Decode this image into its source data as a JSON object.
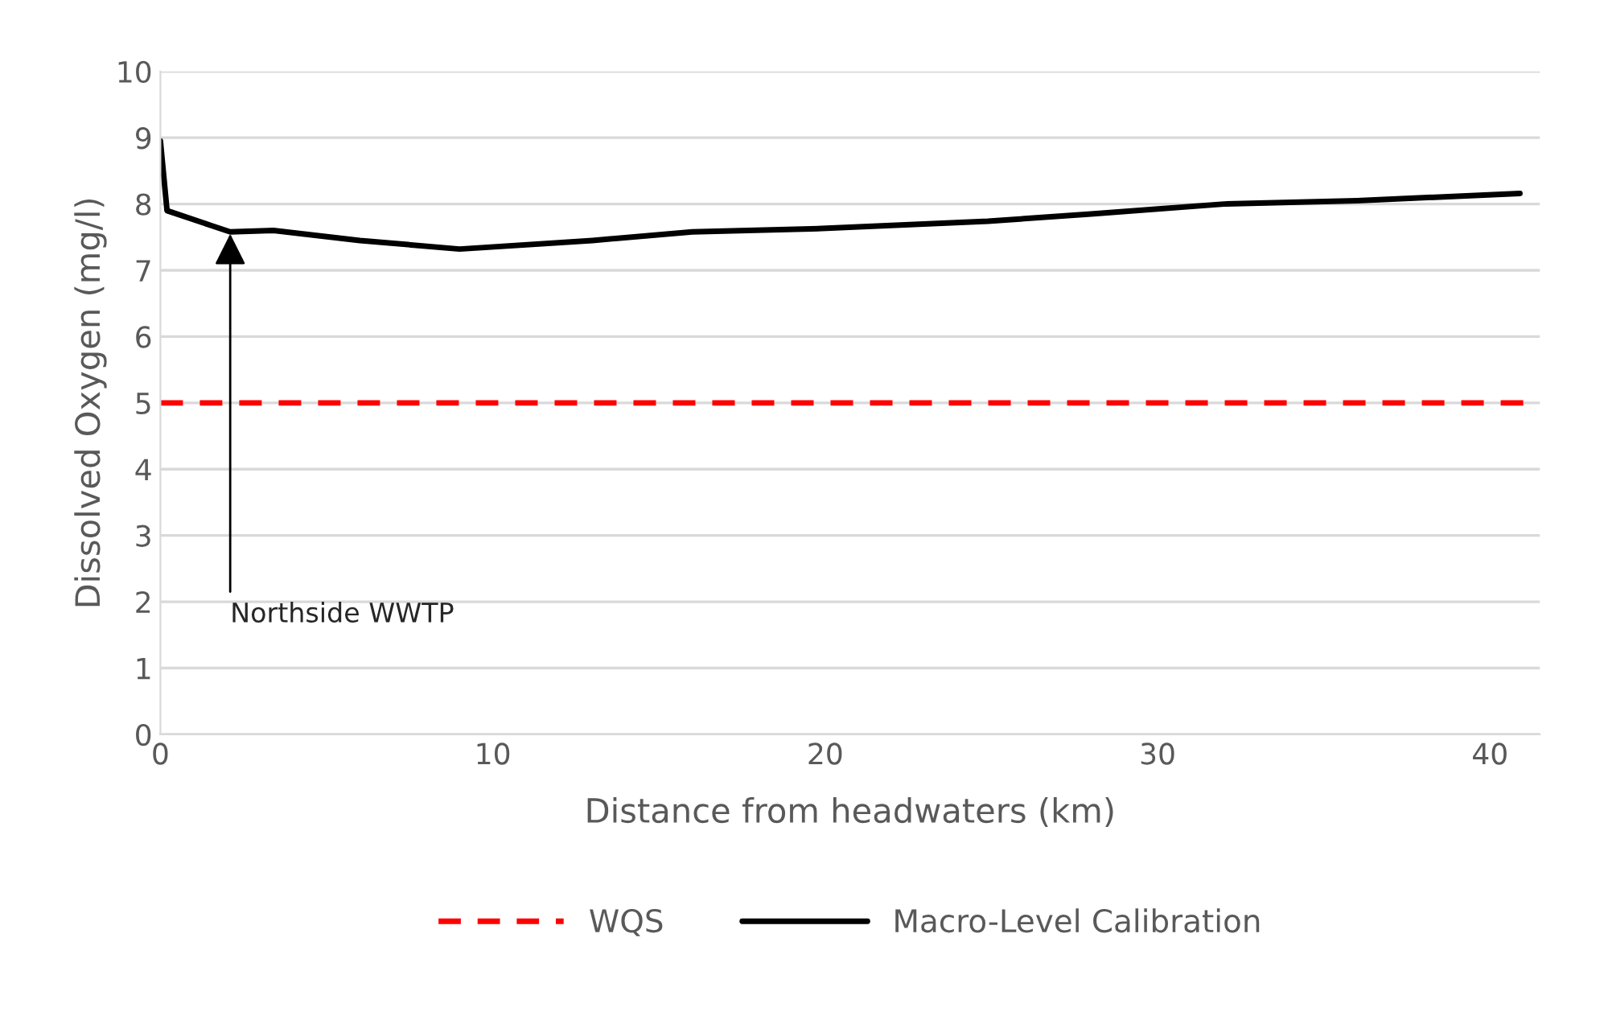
{
  "chart_data": {
    "type": "line",
    "xlabel": "Distance from headwaters (km)",
    "ylabel": "Dissolved Oxygen (mg/l)",
    "xlim": [
      0,
      41.5
    ],
    "xticks": [
      0,
      10,
      20,
      30,
      40
    ],
    "ylim": [
      0,
      10
    ],
    "yticks": [
      0,
      1,
      2,
      3,
      4,
      5,
      6,
      7,
      8,
      9,
      10
    ],
    "grid": "y",
    "legend": "bottom",
    "series": [
      {
        "name": "WQS",
        "color": "#ff0000",
        "line_style": "dashed",
        "x": [
          0,
          41
        ],
        "values": [
          5,
          5
        ]
      },
      {
        "name": "Macro-Level Calibration",
        "color": "#000000",
        "line_style": "solid",
        "x": [
          0,
          0.2,
          1.5,
          2.1,
          3.4,
          6,
          9.0,
          13,
          16,
          19.9,
          24.9,
          28,
          32.0,
          36,
          40.9
        ],
        "values": [
          8.95,
          7.9,
          7.68,
          7.58,
          7.6,
          7.45,
          7.32,
          7.45,
          7.58,
          7.63,
          7.74,
          7.85,
          8.0,
          8.05,
          8.16
        ]
      }
    ],
    "annotations": [
      {
        "text": "Northside WWTP",
        "x": 2.1,
        "y": 7.55
      }
    ]
  }
}
